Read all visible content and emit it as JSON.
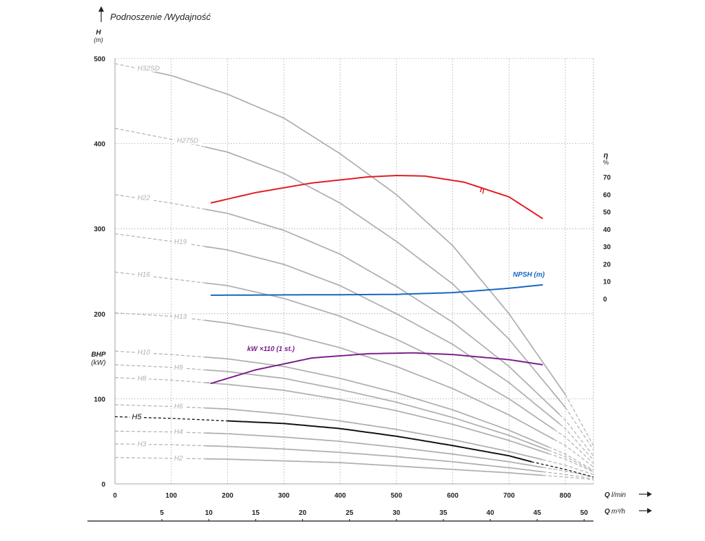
{
  "chart_data": {
    "type": "line",
    "title": "Podnoszenie /Wydajność",
    "y_axis": {
      "label": "H",
      "unit": "(m)",
      "range": [
        0,
        500
      ],
      "ticks": [
        0,
        100,
        200,
        300,
        400,
        500
      ]
    },
    "x_axis": {
      "label": "Q",
      "unit": "l/min",
      "range": [
        0,
        850
      ],
      "ticks": [
        0,
        100,
        200,
        300,
        400,
        500,
        600,
        700,
        800
      ]
    },
    "x2_axis": {
      "label": "Q",
      "unit": "m³/h",
      "ticks": [
        5,
        10,
        15,
        20,
        25,
        30,
        35,
        40,
        45,
        50
      ]
    },
    "right_axis": {
      "label": "η",
      "unit": "%",
      "ticks": [
        0,
        10,
        20,
        30,
        40,
        50,
        60,
        70
      ]
    },
    "bhp_label": "BHP",
    "bhp_unit": "(kW)",
    "grid": true,
    "pump_curves": [
      {
        "name": "H32SD",
        "h0": 494,
        "solid_from": 55,
        "solid_to": 800,
        "points": [
          [
            0,
            494
          ],
          [
            100,
            480
          ],
          [
            200,
            458
          ],
          [
            300,
            430
          ],
          [
            400,
            388
          ],
          [
            500,
            340
          ],
          [
            600,
            280
          ],
          [
            700,
            200
          ],
          [
            800,
            105
          ],
          [
            850,
            45
          ]
        ]
      },
      {
        "name": "H275D",
        "h0": 418,
        "solid_from": 160,
        "solid_to": 800,
        "points": [
          [
            0,
            418
          ],
          [
            100,
            405
          ],
          [
            200,
            390
          ],
          [
            300,
            365
          ],
          [
            400,
            330
          ],
          [
            500,
            285
          ],
          [
            600,
            235
          ],
          [
            700,
            170
          ],
          [
            800,
            90
          ],
          [
            850,
            40
          ]
        ]
      },
      {
        "name": "H22",
        "h0": 340,
        "solid_from": 160,
        "solid_to": 790,
        "points": [
          [
            0,
            340
          ],
          [
            100,
            330
          ],
          [
            200,
            318
          ],
          [
            300,
            298
          ],
          [
            400,
            270
          ],
          [
            500,
            232
          ],
          [
            600,
            190
          ],
          [
            700,
            138
          ],
          [
            800,
            75
          ],
          [
            850,
            33
          ]
        ]
      },
      {
        "name": "H19",
        "h0": 294,
        "solid_from": 160,
        "solid_to": 790,
        "points": [
          [
            0,
            294
          ],
          [
            100,
            285
          ],
          [
            200,
            275
          ],
          [
            300,
            258
          ],
          [
            400,
            233
          ],
          [
            500,
            200
          ],
          [
            600,
            164
          ],
          [
            700,
            119
          ],
          [
            800,
            65
          ],
          [
            850,
            28
          ]
        ]
      },
      {
        "name": "H16",
        "h0": 249,
        "solid_from": 160,
        "solid_to": 780,
        "points": [
          [
            0,
            249
          ],
          [
            100,
            241
          ],
          [
            200,
            233
          ],
          [
            300,
            218
          ],
          [
            400,
            197
          ],
          [
            500,
            170
          ],
          [
            600,
            138
          ],
          [
            700,
            100
          ],
          [
            800,
            55
          ],
          [
            850,
            24
          ]
        ]
      },
      {
        "name": "H13",
        "h0": 201,
        "solid_from": 160,
        "solid_to": 780,
        "points": [
          [
            0,
            201
          ],
          [
            100,
            197
          ],
          [
            200,
            189
          ],
          [
            300,
            177
          ],
          [
            400,
            160
          ],
          [
            500,
            138
          ],
          [
            600,
            112
          ],
          [
            700,
            81
          ],
          [
            800,
            45
          ],
          [
            850,
            20
          ]
        ]
      },
      {
        "name": "H10",
        "h0": 156,
        "solid_from": 160,
        "solid_to": 770,
        "points": [
          [
            0,
            156
          ],
          [
            100,
            152
          ],
          [
            200,
            147
          ],
          [
            300,
            138
          ],
          [
            400,
            124
          ],
          [
            500,
            107
          ],
          [
            600,
            87
          ],
          [
            700,
            63
          ],
          [
            800,
            35
          ],
          [
            850,
            16
          ]
        ]
      },
      {
        "name": "H9",
        "h0": 140,
        "solid_from": 160,
        "solid_to": 770,
        "points": [
          [
            0,
            140
          ],
          [
            100,
            137
          ],
          [
            200,
            132
          ],
          [
            300,
            124
          ],
          [
            400,
            111
          ],
          [
            500,
            96
          ],
          [
            600,
            78
          ],
          [
            700,
            57
          ],
          [
            800,
            32
          ],
          [
            850,
            15
          ]
        ]
      },
      {
        "name": "H8",
        "h0": 125,
        "solid_from": 160,
        "solid_to": 770,
        "points": [
          [
            0,
            125
          ],
          [
            100,
            122
          ],
          [
            200,
            117
          ],
          [
            300,
            110
          ],
          [
            400,
            99
          ],
          [
            500,
            86
          ],
          [
            600,
            70
          ],
          [
            700,
            51
          ],
          [
            800,
            29
          ],
          [
            850,
            14
          ]
        ]
      },
      {
        "name": "H6",
        "h0": 93,
        "solid_from": 160,
        "solid_to": 760,
        "points": [
          [
            0,
            93
          ],
          [
            100,
            91
          ],
          [
            200,
            88
          ],
          [
            300,
            82
          ],
          [
            400,
            74
          ],
          [
            500,
            64
          ],
          [
            600,
            52
          ],
          [
            700,
            38
          ],
          [
            800,
            22
          ],
          [
            850,
            11
          ]
        ]
      },
      {
        "name": "H4",
        "h0": 62,
        "solid_from": 160,
        "solid_to": 760,
        "points": [
          [
            0,
            62
          ],
          [
            100,
            61
          ],
          [
            200,
            59
          ],
          [
            300,
            55
          ],
          [
            400,
            50
          ],
          [
            500,
            43
          ],
          [
            600,
            35
          ],
          [
            700,
            26
          ],
          [
            800,
            15
          ],
          [
            850,
            8
          ]
        ]
      },
      {
        "name": "H3",
        "h0": 47,
        "solid_from": 160,
        "solid_to": 760,
        "points": [
          [
            0,
            47
          ],
          [
            100,
            46
          ],
          [
            200,
            44
          ],
          [
            300,
            41
          ],
          [
            400,
            37
          ],
          [
            500,
            32
          ],
          [
            600,
            26
          ],
          [
            700,
            19
          ],
          [
            800,
            11
          ],
          [
            850,
            6
          ]
        ]
      },
      {
        "name": "H2",
        "h0": 31,
        "solid_from": 160,
        "solid_to": 760,
        "points": [
          [
            0,
            31
          ],
          [
            100,
            30
          ],
          [
            200,
            29
          ],
          [
            300,
            27
          ],
          [
            400,
            25
          ],
          [
            500,
            21
          ],
          [
            600,
            17
          ],
          [
            700,
            13
          ],
          [
            800,
            8
          ],
          [
            850,
            5
          ]
        ]
      }
    ],
    "highlight_curve": {
      "name": "H5",
      "color": "#111111",
      "solid_from": 200,
      "solid_to": 740,
      "points": [
        [
          0,
          79
        ],
        [
          100,
          77
        ],
        [
          200,
          74
        ],
        [
          300,
          71
        ],
        [
          400,
          65
        ],
        [
          500,
          56
        ],
        [
          600,
          45
        ],
        [
          700,
          33
        ],
        [
          740,
          26
        ],
        [
          800,
          17
        ],
        [
          850,
          8
        ]
      ]
    },
    "efficiency": {
      "name": "η",
      "color": "#e01b22",
      "points": [
        [
          170,
          55
        ],
        [
          250,
          61
        ],
        [
          350,
          66.5
        ],
        [
          450,
          70
        ],
        [
          500,
          70.8
        ],
        [
          550,
          70.5
        ],
        [
          620,
          67
        ],
        [
          700,
          58.5
        ],
        [
          760,
          46
        ]
      ]
    },
    "npsh": {
      "name": "NPSH (m)",
      "color": "#1565c0",
      "points": [
        [
          170,
          2
        ],
        [
          300,
          2.2
        ],
        [
          400,
          2.3
        ],
        [
          500,
          2.5
        ],
        [
          600,
          3.5
        ],
        [
          700,
          6
        ],
        [
          760,
          8
        ]
      ]
    },
    "power": {
      "name": "kW ×110 (1 st.)",
      "color": "#7b1e8c",
      "points": [
        [
          170,
          118
        ],
        [
          250,
          134
        ],
        [
          350,
          148
        ],
        [
          450,
          153
        ],
        [
          530,
          154
        ],
        [
          600,
          152
        ],
        [
          700,
          146
        ],
        [
          760,
          140
        ]
      ]
    }
  }
}
